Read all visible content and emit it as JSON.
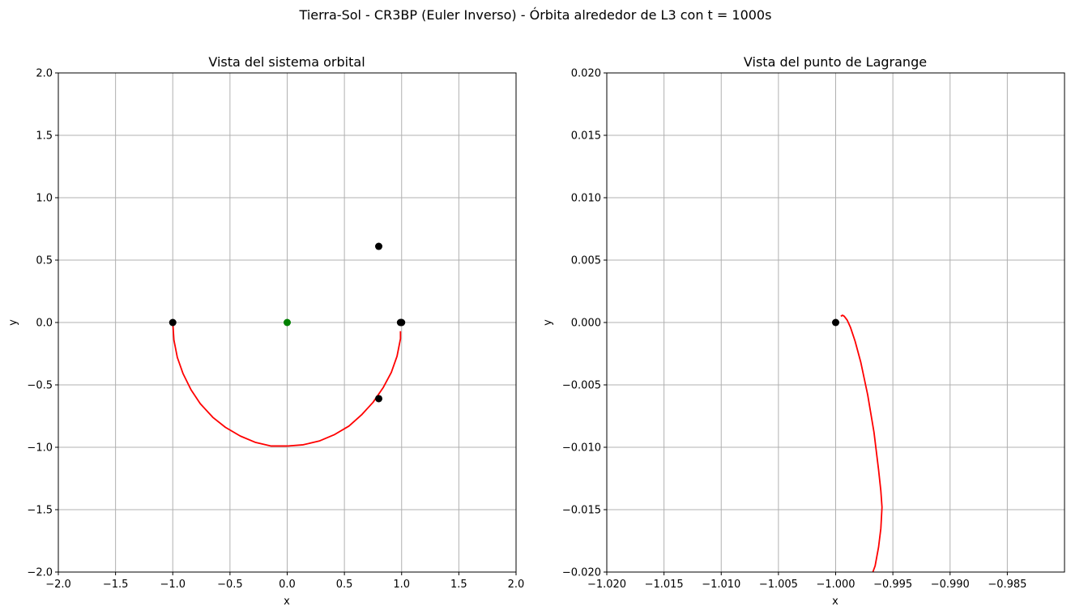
{
  "figure": {
    "suptitle": "Tierra-Sol - CR3BP (Euler Inverso) - Órbita alrededor de L3 con t = 1000s"
  },
  "chart_data": [
    {
      "type": "line",
      "title": "Vista del sistema orbital",
      "xlabel": "x",
      "ylabel": "y",
      "xlim": [
        -2.0,
        2.0
      ],
      "ylim": [
        -2.0,
        2.0
      ],
      "grid": true,
      "xticks": [
        "−2.0",
        "−1.5",
        "−1.0",
        "−0.5",
        "0.0",
        "0.5",
        "1.0",
        "1.5",
        "2.0"
      ],
      "yticks": [
        "−2.0",
        "−1.5",
        "−1.0",
        "−0.5",
        "0.0",
        "0.5",
        "1.0",
        "1.5",
        "2.0"
      ],
      "xtick_values": [
        -2.0,
        -1.5,
        -1.0,
        -0.5,
        0.0,
        0.5,
        1.0,
        1.5,
        2.0
      ],
      "ytick_values": [
        -2.0,
        -1.5,
        -1.0,
        -0.5,
        0.0,
        0.5,
        1.0,
        1.5,
        2.0
      ],
      "series": [
        {
          "kind": "line",
          "color": "#ff0000",
          "points": [
            [
              -1.0,
              0.0
            ],
            [
              -0.99,
              -0.14
            ],
            [
              -0.96,
              -0.28
            ],
            [
              -0.91,
              -0.41
            ],
            [
              -0.84,
              -0.54
            ],
            [
              -0.76,
              -0.65
            ],
            [
              -0.65,
              -0.76
            ],
            [
              -0.54,
              -0.84
            ],
            [
              -0.41,
              -0.91
            ],
            [
              -0.28,
              -0.96
            ],
            [
              -0.14,
              -0.99
            ],
            [
              0.0,
              -0.99
            ],
            [
              0.14,
              -0.98
            ],
            [
              0.28,
              -0.95
            ],
            [
              0.41,
              -0.9
            ],
            [
              0.54,
              -0.83
            ],
            [
              0.65,
              -0.74
            ],
            [
              0.75,
              -0.64
            ],
            [
              0.84,
              -0.52
            ],
            [
              0.91,
              -0.4
            ],
            [
              0.96,
              -0.27
            ],
            [
              0.99,
              -0.13
            ],
            [
              0.99,
              -0.07
            ]
          ]
        },
        {
          "kind": "scatter",
          "color": "#000000",
          "points": [
            [
              -1.0,
              0.0
            ],
            [
              0.8,
              0.61
            ],
            [
              0.99,
              0.0
            ],
            [
              1.0,
              0.0
            ],
            [
              0.8,
              -0.61
            ]
          ]
        },
        {
          "kind": "scatter",
          "color": "#008000",
          "points": [
            [
              0.0,
              0.0
            ]
          ]
        }
      ]
    },
    {
      "type": "line",
      "title": "Vista del punto de Lagrange",
      "xlabel": "x",
      "ylabel": "y",
      "xlim": [
        -1.02,
        -0.98
      ],
      "ylim": [
        -0.02,
        0.02
      ],
      "grid": true,
      "xticks": [
        "−1.020",
        "−1.015",
        "−1.010",
        "−1.005",
        "−1.000",
        "−0.995",
        "−0.990",
        "−0.985"
      ],
      "yticks": [
        "−0.020",
        "−0.015",
        "−0.010",
        "−0.005",
        "0.000",
        "0.005",
        "0.010",
        "0.015",
        "0.020"
      ],
      "xtick_values": [
        -1.02,
        -1.015,
        -1.01,
        -1.005,
        -1.0,
        -0.995,
        -0.99,
        -0.985
      ],
      "ytick_values": [
        -0.02,
        -0.015,
        -0.01,
        -0.005,
        0.0,
        0.005,
        0.01,
        0.015,
        0.02
      ],
      "series": [
        {
          "kind": "line",
          "color": "#ff0000",
          "points": [
            [
              -0.99955,
              0.0005
            ],
            [
              -0.9994,
              0.00058
            ],
            [
              -0.99925,
              0.0005
            ],
            [
              -0.999,
              0.0002
            ],
            [
              -0.9987,
              -0.0004
            ],
            [
              -0.9983,
              -0.0015
            ],
            [
              -0.9978,
              -0.0032
            ],
            [
              -0.9972,
              -0.0058
            ],
            [
              -0.99665,
              -0.0088
            ],
            [
              -0.99625,
              -0.0118
            ],
            [
              -0.99605,
              -0.0135
            ],
            [
              -0.99595,
              -0.0148
            ],
            [
              -0.99605,
              -0.0165
            ],
            [
              -0.99625,
              -0.018
            ],
            [
              -0.99655,
              -0.0195
            ],
            [
              -0.99675,
              -0.02
            ]
          ]
        },
        {
          "kind": "scatter",
          "color": "#000000",
          "points": [
            [
              -1.0,
              0.0
            ]
          ]
        }
      ]
    }
  ]
}
